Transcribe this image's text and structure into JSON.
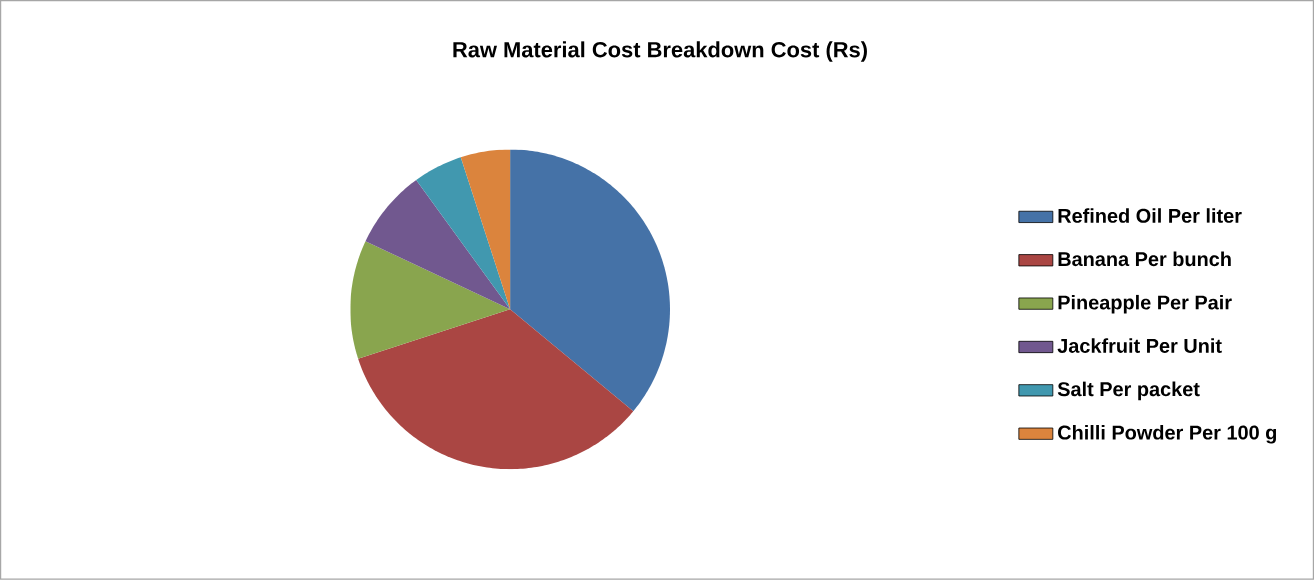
{
  "chart_data": {
    "type": "pie",
    "title": "Raw Material Cost Breakdown  Cost (Rs)",
    "categories": [
      "Refined Oil Per liter",
      "Banana Per bunch",
      "Pineapple Per Pair",
      "Jackfruit Per Unit",
      "Salt Per packet",
      "Chilli Powder Per 100 g"
    ],
    "values": [
      36,
      34,
      12,
      8,
      5,
      5
    ],
    "colors": [
      "#4572a7",
      "#aa4643",
      "#89a54e",
      "#71588f",
      "#4198af",
      "#db843d"
    ],
    "legend": "right"
  }
}
